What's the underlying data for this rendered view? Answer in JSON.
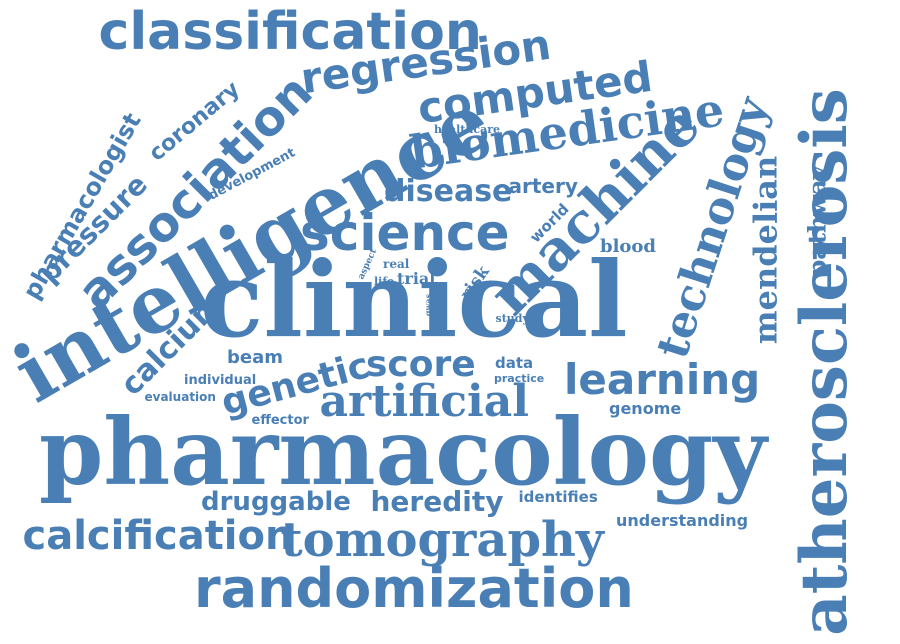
{
  "word_color": "#4a7fb5",
  "words": {
    "classification": "classification",
    "regression": "regression",
    "computed": "computed",
    "biomedicine": "biomedicine",
    "healthcare": "healthcare",
    "technology": "technology",
    "atherosclerosis": "atherosclerosis",
    "mendelian": "mendelian",
    "pathway": "pathway",
    "pharmacologist": "pharmacologist",
    "coronary": "coronary",
    "pressure": "pressure",
    "association": "association",
    "development": "development",
    "intelligence": "intelligence",
    "science": "science",
    "disease": "disease",
    "artery": "artery",
    "machine": "machine",
    "world": "world",
    "blood": "blood",
    "aspect": "aspect",
    "real": "real",
    "life": "life",
    "trial": "trial",
    "risk": "risk",
    "gwas": "gwas",
    "safe": "safe",
    "study": "study",
    "calcium": "calcium",
    "clinical": "clinical",
    "beam": "beam",
    "individual": "individual",
    "genetic": "genetic",
    "score": "score",
    "data": "data",
    "practice": "practice",
    "evaluation": "evaluation",
    "effector": "effector",
    "artificial": "artificial",
    "learning": "learning",
    "genome": "genome",
    "pharmacology": "pharmacology",
    "druggable": "druggable",
    "heredity": "heredity",
    "identifies": "identifies",
    "understanding": "understanding",
    "calcification": "calcification",
    "tomography": "tomography",
    "randomization": "randomization"
  }
}
